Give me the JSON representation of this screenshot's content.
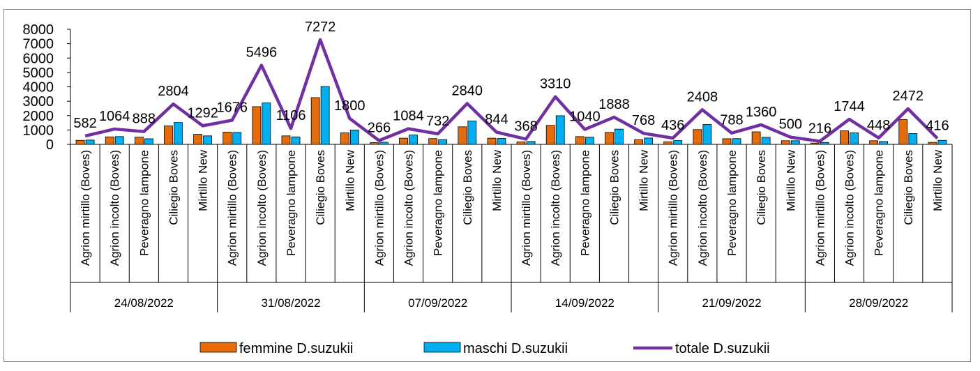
{
  "chart_data": {
    "type": "bar",
    "ylim": [
      0,
      8000
    ],
    "yticks": [
      "0",
      "1000",
      "2000",
      "3000",
      "4000",
      "5000",
      "6000",
      "7000",
      "8000"
    ],
    "groups": [
      "24/08/2022",
      "31/08/2022",
      "07/09/2022",
      "14/09/2022",
      "21/09/2022",
      "28/09/2022"
    ],
    "categories": [
      "Agrion mirtillo (Boves)",
      "Agrion incolto (Boves)",
      "Peveragno lampone",
      "Ciliegio Boves",
      "Mirtillo New",
      "Agrion mirtillo (Boves)",
      "Agrion incolto (Boves)",
      "Peveragno lampone",
      "Ciliegio Boves",
      "Mirtillo New",
      "Agrion mirtillo (Boves)",
      "Agrion incolto (Boves)",
      "Peveragno lampone",
      "Ciliegio Boves",
      "Mirtillo New",
      "Agrion mirtillo (Boves)",
      "Agrion incolto (Boves)",
      "Peveragno lampone",
      "Ciliegio Boves",
      "Mirtillo New",
      "Agrion mirtillo (Boves)",
      "Agrion incolto (Boves)",
      "Peveragno lampone",
      "Ciliegio Boves",
      "Mirtillo New",
      "Agrion mirtillo (Boves)",
      "Agrion incolto (Boves)",
      "Peveragno lampone",
      "Ciliegio Boves",
      "Mirtillo New"
    ],
    "series": [
      {
        "name": "femmine D.suzukii",
        "type": "bar",
        "color": "#E46C0A",
        "values": [
          280,
          520,
          500,
          1280,
          700,
          850,
          2620,
          590,
          3250,
          800,
          120,
          430,
          400,
          1220,
          430,
          170,
          1320,
          540,
          830,
          330,
          180,
          1030,
          390,
          870,
          250,
          90,
          940,
          250,
          1720,
          140
        ]
      },
      {
        "name": "maschi D.suzukii",
        "type": "bar",
        "color": "#00B0F0",
        "values": [
          300,
          540,
          390,
          1520,
          590,
          830,
          2880,
          520,
          4020,
          1000,
          150,
          650,
          330,
          1620,
          410,
          200,
          1990,
          500,
          1060,
          440,
          260,
          1380,
          400,
          490,
          250,
          130,
          800,
          200,
          750,
          280
        ]
      },
      {
        "name": "totale D.suzukii",
        "type": "line",
        "color": "#7030A0",
        "values": [
          582,
          1064,
          888,
          2804,
          1292,
          1676,
          5496,
          1106,
          7272,
          1800,
          266,
          1084,
          732,
          2840,
          844,
          368,
          3310,
          1040,
          1888,
          768,
          436,
          2408,
          788,
          1360,
          500,
          216,
          1744,
          448,
          2472,
          416
        ],
        "labels": [
          "582",
          "1064",
          "888",
          "2804",
          "1292",
          "1676",
          "5496",
          "1106",
          "7272",
          "1800",
          "266",
          "1084",
          "732",
          "2840",
          "844",
          "368",
          "3310",
          "1040",
          "1888",
          "768",
          "436",
          "2408",
          "788",
          "1360",
          "500",
          "216",
          "1744",
          "448",
          "2472",
          "416"
        ]
      }
    ],
    "legend": "bottom"
  }
}
